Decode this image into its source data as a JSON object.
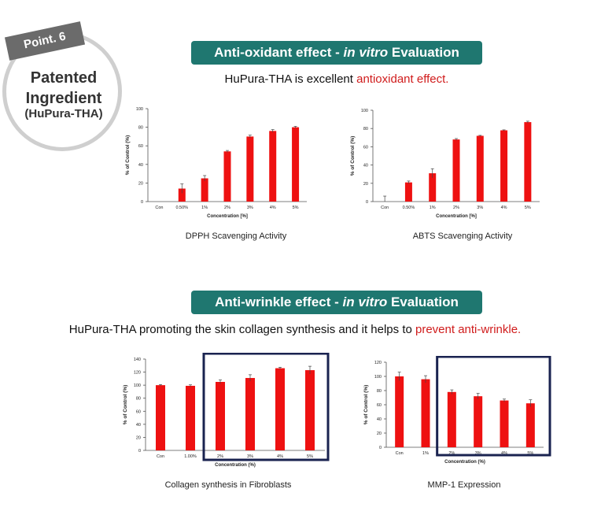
{
  "badge": {
    "tag": "Point. 6",
    "title_line1": "Patented",
    "title_line2": "Ingredient",
    "subtitle": "(HuPura-THA)"
  },
  "section1": {
    "banner_prefix": "Anti-oxidant effect -",
    "banner_italic": "in vitro",
    "banner_suffix": "Evaluation",
    "subtitle_plain": "HuPura-THA is excellent",
    "subtitle_highlight": "antioxidant effect."
  },
  "section2": {
    "banner_prefix": "Anti-wrinkle effect -",
    "banner_italic": "in vitro",
    "banner_suffix": "Evaluation",
    "subtitle_plain": "HuPura-THA promoting the skin collagen synthesis and it helps to",
    "subtitle_highlight": "prevent anti-wrinkle."
  },
  "colors": {
    "bar": "#ee1111",
    "banner": "#1f7770",
    "highlight": "#d01c1c",
    "box": "#1a2350"
  },
  "chart_data": [
    {
      "type": "bar",
      "title": "DPPH Scavenging Activity",
      "xlabel": "Concentration [%]",
      "ylabel": "% of Control (%)",
      "categories": [
        "Con",
        "0.50%",
        "1%",
        "2%",
        "3%",
        "4%",
        "5%"
      ],
      "values": [
        0,
        14,
        25,
        54,
        70,
        76,
        80
      ],
      "errors": [
        0,
        5,
        3,
        1,
        1.5,
        1.5,
        1
      ],
      "ylim": [
        0,
        100
      ],
      "yticks": [
        0,
        20,
        40,
        60,
        80,
        100
      ],
      "highlight_from": null
    },
    {
      "type": "bar",
      "title": "ABTS Scavenging Activity",
      "xlabel": "Concentration [%]",
      "ylabel": "% of Control (%)",
      "categories": [
        "Con",
        "0.50%",
        "1%",
        "2%",
        "3%",
        "4%",
        "5%"
      ],
      "values": [
        0,
        21,
        31,
        68,
        72,
        78,
        87
      ],
      "errors": [
        6,
        1.5,
        5,
        1,
        0.5,
        0.5,
        1
      ],
      "ylim": [
        0,
        100
      ],
      "yticks": [
        0,
        20,
        40,
        60,
        80,
        100
      ],
      "highlight_from": null
    },
    {
      "type": "bar",
      "title": "Collagen synthesis in Fibroblasts",
      "xlabel": "Concentration (%)",
      "ylabel": "% of Control (%)",
      "categories": [
        "Con",
        "1.00%",
        "2%",
        "3%",
        "4%",
        "5%"
      ],
      "values": [
        100,
        99,
        105,
        111,
        126,
        123
      ],
      "errors": [
        1,
        1.5,
        3,
        5,
        1.5,
        6
      ],
      "ylim": [
        0,
        140
      ],
      "yticks": [
        0,
        20,
        40,
        60,
        80,
        100,
        120,
        140
      ],
      "highlight_from": 2
    },
    {
      "type": "bar",
      "title": "MMP-1 Expression",
      "xlabel": "Concentration (%)",
      "ylabel": "% of Control (%)",
      "categories": [
        "Con",
        "1%",
        "2%",
        "3%",
        "4%",
        "5%"
      ],
      "values": [
        100,
        96,
        78,
        72,
        66,
        62
      ],
      "errors": [
        6,
        5,
        3,
        4,
        2,
        5
      ],
      "ylim": [
        0,
        120
      ],
      "yticks": [
        0,
        20,
        40,
        60,
        80,
        100,
        120
      ],
      "highlight_from": 2
    }
  ]
}
